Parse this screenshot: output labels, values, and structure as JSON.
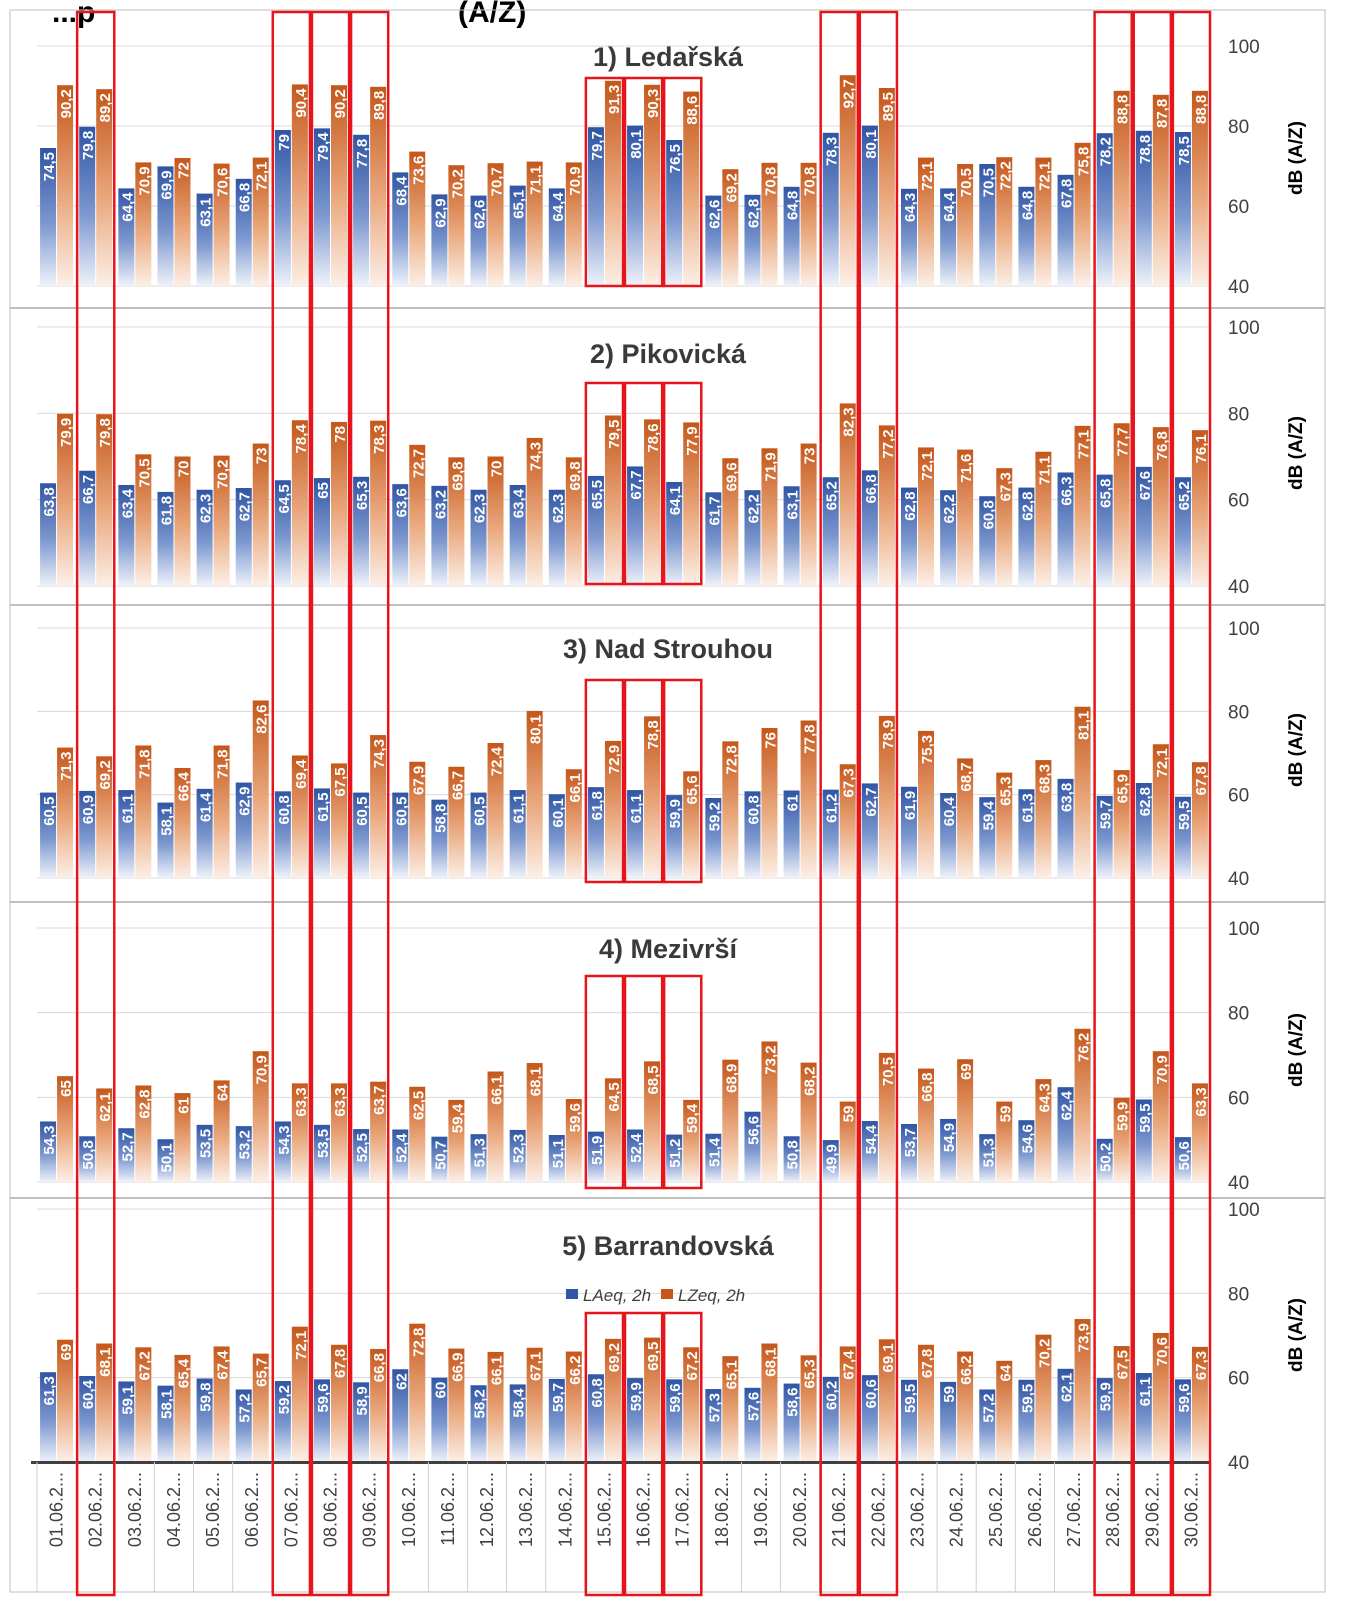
{
  "title": "...p",
  "title_suffix": "(A/Z)",
  "colors": {
    "laeq": "#2f55a4",
    "lzeq": "#c5571a",
    "highlight": "#e8141c",
    "grid": "#d9d9d9"
  },
  "chart_data": [
    {
      "type": "bar",
      "title": "1) Ledařská",
      "ylabel": "dB (A/Z)",
      "ylim": [
        40,
        100
      ],
      "yticks": [
        "40",
        "60",
        "80",
        "100"
      ],
      "series": [
        {
          "name": "LAeq, 2h",
          "values": [
            74.5,
            79.8,
            64.4,
            69.9,
            63.1,
            66.8,
            79,
            79.4,
            77.8,
            68.4,
            62.9,
            62.6,
            65.1,
            64.4,
            79.7,
            80.1,
            76.5,
            62.6,
            62.8,
            64.8,
            78.3,
            80.1,
            64.3,
            64.4,
            70.5,
            64.8,
            67.8,
            78.2,
            78.8,
            78.5
          ],
          "labels": [
            "74,5",
            "79,8",
            "64,4",
            "69,9",
            "63,1",
            "66,8",
            "79",
            "79,4",
            "77,8",
            "68,4",
            "62,9",
            "62,6",
            "65,1",
            "64,4",
            "79,7",
            "80,1",
            "76,5",
            "62,6",
            "62,8",
            "64,8",
            "78,3",
            "80,1",
            "64,3",
            "64,4",
            "70,5",
            "64,8",
            "67,8",
            "78,2",
            "78,8",
            "78,5"
          ]
        },
        {
          "name": "LZeq, 2h",
          "values": [
            90.2,
            89.2,
            70.9,
            72,
            70.6,
            72.1,
            90.4,
            90.2,
            89.8,
            73.6,
            70.2,
            70.7,
            71.1,
            70.9,
            91.3,
            90.3,
            88.6,
            69.2,
            70.8,
            70.8,
            92.7,
            89.5,
            72.1,
            70.5,
            72.2,
            72.1,
            75.8,
            88.8,
            87.8,
            88.8
          ],
          "labels": [
            "90,2",
            "89,2",
            "70,9",
            "72",
            "70,6",
            "72,1",
            "90,4",
            "90,2",
            "89,8",
            "73,6",
            "70,2",
            "70,7",
            "71,1",
            "70,9",
            "91,3",
            "90,3",
            "88,6",
            "69,2",
            "70,8",
            "70,8",
            "92,7",
            "89,5",
            "72,1",
            "70,5",
            "72,2",
            "72,1",
            "75,8",
            "88,8",
            "87,8",
            "88,8"
          ]
        }
      ]
    },
    {
      "type": "bar",
      "title": "2) Pikovická",
      "ylabel": "dB (A/Z)",
      "ylim": [
        40,
        100
      ],
      "yticks": [
        "40",
        "60",
        "80",
        "100"
      ],
      "series": [
        {
          "name": "LAeq, 2h",
          "values": [
            63.8,
            66.7,
            63.4,
            61.8,
            62.3,
            62.7,
            64.5,
            65,
            65.3,
            63.6,
            63.2,
            62.3,
            63.4,
            62.3,
            65.5,
            67.7,
            64.1,
            61.7,
            62.2,
            63.1,
            65.2,
            66.8,
            62.8,
            62.2,
            60.8,
            62.8,
            66.3,
            65.8,
            67.6,
            65.2
          ],
          "labels": [
            "63,8",
            "66,7",
            "63,4",
            "61,8",
            "62,3",
            "62,7",
            "64,5",
            "65",
            "65,3",
            "63,6",
            "63,2",
            "62,3",
            "63,4",
            "62,3",
            "65,5",
            "67,7",
            "64,1",
            "61,7",
            "62,2",
            "63,1",
            "65,2",
            "66,8",
            "62,8",
            "62,2",
            "60,8",
            "62,8",
            "66,3",
            "65,8",
            "67,6",
            "65,2"
          ]
        },
        {
          "name": "LZeq, 2h",
          "values": [
            79.9,
            79.8,
            70.5,
            70,
            70.2,
            73,
            78.4,
            78,
            78.3,
            72.7,
            69.8,
            70,
            74.3,
            69.8,
            79.5,
            78.6,
            77.9,
            69.6,
            71.9,
            73,
            82.3,
            77.2,
            72.1,
            71.6,
            67.3,
            71.1,
            77.1,
            77.7,
            76.8,
            76.1
          ],
          "labels": [
            "79,9",
            "79,8",
            "70,5",
            "70",
            "70,2",
            "73",
            "78,4",
            "78",
            "78,3",
            "72,7",
            "69,8",
            "70",
            "74,3",
            "69,8",
            "79,5",
            "78,6",
            "77,9",
            "69,6",
            "71,9",
            "73",
            "82,3",
            "77,2",
            "72,1",
            "71,6",
            "67,3",
            "71,1",
            "77,1",
            "77,7",
            "76,8",
            "76,1"
          ]
        }
      ]
    },
    {
      "type": "bar",
      "title": "3) Nad Strouhou",
      "ylabel": "dB (A/Z)",
      "ylim": [
        40,
        100
      ],
      "yticks": [
        "40",
        "60",
        "80",
        "100"
      ],
      "series": [
        {
          "name": "LAeq, 2h",
          "values": [
            60.5,
            60.9,
            61.1,
            58.1,
            61.4,
            62.9,
            60.8,
            61.5,
            60.5,
            60.5,
            58.8,
            60.5,
            61.1,
            60.1,
            61.8,
            61.1,
            59.9,
            59.2,
            60.8,
            61,
            61.2,
            62.7,
            61.9,
            60.4,
            59.4,
            61.3,
            63.8,
            59.7,
            62.8,
            59.5
          ],
          "labels": [
            "60,5",
            "60,9",
            "61,1",
            "58,1",
            "61,4",
            "62,9",
            "60,8",
            "61,5",
            "60,5",
            "60,5",
            "58,8",
            "60,5",
            "61,1",
            "60,1",
            "61,8",
            "61,1",
            "59,9",
            "59,2",
            "60,8",
            "61",
            "61,2",
            "62,7",
            "61,9",
            "60,4",
            "59,4",
            "61,3",
            "63,8",
            "59,7",
            "62,8",
            "59,5"
          ]
        },
        {
          "name": "LZeq, 2h",
          "values": [
            71.3,
            69.2,
            71.8,
            66.4,
            71.8,
            82.6,
            69.4,
            67.5,
            74.3,
            67.9,
            66.7,
            72.4,
            80.1,
            66.1,
            72.9,
            78.8,
            65.6,
            72.8,
            76,
            77.8,
            67.3,
            78.9,
            75.3,
            68.7,
            65.3,
            68.3,
            81.1,
            65.9,
            72.1,
            67.8
          ],
          "labels": [
            "71,3",
            "69,2",
            "71,8",
            "66,4",
            "71,8",
            "82,6",
            "69,4",
            "67,5",
            "74,3",
            "67,9",
            "66,7",
            "72,4",
            "80,1",
            "66,1",
            "72,9",
            "78,8",
            "65,6",
            "72,8",
            "76",
            "77,8",
            "67,3",
            "78,9",
            "75,3",
            "68,7",
            "65,3",
            "68,3",
            "81,1",
            "65,9",
            "72,1",
            "67,8"
          ]
        }
      ]
    },
    {
      "type": "bar",
      "title": "4) Mezivrší",
      "ylabel": "dB (A/Z)",
      "ylim": [
        40,
        100
      ],
      "yticks": [
        "40",
        "60",
        "80",
        "100"
      ],
      "series": [
        {
          "name": "LAeq, 2h",
          "values": [
            54.3,
            50.8,
            52.7,
            50.1,
            53.5,
            53.2,
            54.3,
            53.5,
            52.5,
            52.4,
            50.7,
            51.3,
            52.3,
            51.1,
            51.9,
            52.4,
            51.2,
            51.4,
            56.6,
            50.8,
            49.9,
            54.4,
            53.7,
            54.9,
            51.3,
            54.6,
            62.4,
            50.2,
            59.5,
            50.6
          ],
          "labels": [
            "54,3",
            "50,8",
            "52,7",
            "50,1",
            "53,5",
            "53,2",
            "54,3",
            "53,5",
            "52,5",
            "52,4",
            "50,7",
            "51,3",
            "52,3",
            "51,1",
            "51,9",
            "52,4",
            "51,2",
            "51,4",
            "56,6",
            "50,8",
            "49,9",
            "54,4",
            "53,7",
            "54,9",
            "51,3",
            "54,6",
            "62,4",
            "50,2",
            "59,5",
            "50,6"
          ]
        },
        {
          "name": "LZeq, 2h",
          "values": [
            65,
            62.1,
            62.8,
            61,
            64,
            70.9,
            63.3,
            63.3,
            63.7,
            62.5,
            59.4,
            66.1,
            68.1,
            59.6,
            64.5,
            68.5,
            59.4,
            68.9,
            73.2,
            68.2,
            59,
            70.5,
            66.8,
            69,
            59,
            64.3,
            76.2,
            59.9,
            70.9,
            63.3
          ],
          "labels": [
            "65",
            "62,1",
            "62,8",
            "61",
            "64",
            "70,9",
            "63,3",
            "63,3",
            "63,7",
            "62,5",
            "59,4",
            "66,1",
            "68,1",
            "59,6",
            "64,5",
            "68,5",
            "59,4",
            "68,9",
            "73,2",
            "68,2",
            "59",
            "70,5",
            "66,8",
            "69",
            "59",
            "64,3",
            "76,2",
            "59,9",
            "70,9",
            "63,3"
          ]
        }
      ]
    },
    {
      "type": "bar",
      "title": "5) Barrandovská",
      "ylabel": "dB (A/Z)",
      "ylim": [
        40,
        100
      ],
      "yticks": [
        "40",
        "60",
        "80",
        "100"
      ],
      "legend": "top-center",
      "categories": [
        "01.06.2...",
        "02.06.2...",
        "03.06.2...",
        "04.06.2...",
        "05.06.2...",
        "06.06.2...",
        "07.06.2...",
        "08.06.2...",
        "09.06.2...",
        "10.06.2...",
        "11.06.2...",
        "12.06.2...",
        "13.06.2...",
        "14.06.2...",
        "15.06.2...",
        "16.06.2...",
        "17.06.2...",
        "18.06.2...",
        "19.06.2...",
        "20.06.2...",
        "21.06.2...",
        "22.06.2...",
        "23.06.2...",
        "24.06.2...",
        "25.06.2...",
        "26.06.2...",
        "27.06.2...",
        "28.06.2...",
        "29.06.2...",
        "30.06.2..."
      ],
      "series": [
        {
          "name": "LAeq, 2h",
          "values": [
            61.3,
            60.4,
            59.1,
            58.1,
            59.8,
            57.2,
            59.2,
            59.6,
            58.9,
            62,
            60,
            58.2,
            58.4,
            59.7,
            60.8,
            59.9,
            59.6,
            57.3,
            57.6,
            58.6,
            60.2,
            60.6,
            59.5,
            59,
            57.2,
            59.5,
            62.1,
            59.9,
            61.1,
            59.6
          ],
          "labels": [
            "61,3",
            "60,4",
            "59,1",
            "58,1",
            "59,8",
            "57,2",
            "59,2",
            "59,6",
            "58,9",
            "62",
            "60",
            "58,2",
            "58,4",
            "59,7",
            "60,8",
            "59,9",
            "59,6",
            "57,3",
            "57,6",
            "58,6",
            "60,2",
            "60,6",
            "59,5",
            "59",
            "57,2",
            "59,5",
            "62,1",
            "59,9",
            "61,1",
            "59,6"
          ]
        },
        {
          "name": "LZeq, 2h",
          "values": [
            69,
            68.1,
            67.2,
            65.4,
            67.4,
            65.7,
            72.1,
            67.8,
            66.8,
            72.8,
            66.9,
            66.1,
            67.1,
            66.2,
            69.2,
            69.5,
            67.2,
            65.1,
            68.1,
            65.3,
            67.4,
            69.1,
            67.8,
            66.2,
            64,
            70.2,
            73.9,
            67.5,
            70.6,
            67.3
          ],
          "labels": [
            "69",
            "68,1",
            "67,2",
            "65,4",
            "67,4",
            "65,7",
            "72,1",
            "67,8",
            "66,8",
            "72,8",
            "66,9",
            "66,1",
            "67,1",
            "66,2",
            "69,2",
            "69,5",
            "67,2",
            "65,1",
            "68,1",
            "65,3",
            "67,4",
            "69,1",
            "67,8",
            "66,2",
            "64",
            "70,2",
            "73,9",
            "67,5",
            "70,6",
            "67,3"
          ]
        }
      ]
    }
  ],
  "highlighted_days_full": [
    2,
    7,
    8,
    9,
    21,
    22,
    28,
    29,
    30
  ],
  "highlighted_days_panels": [
    15,
    16,
    17
  ]
}
